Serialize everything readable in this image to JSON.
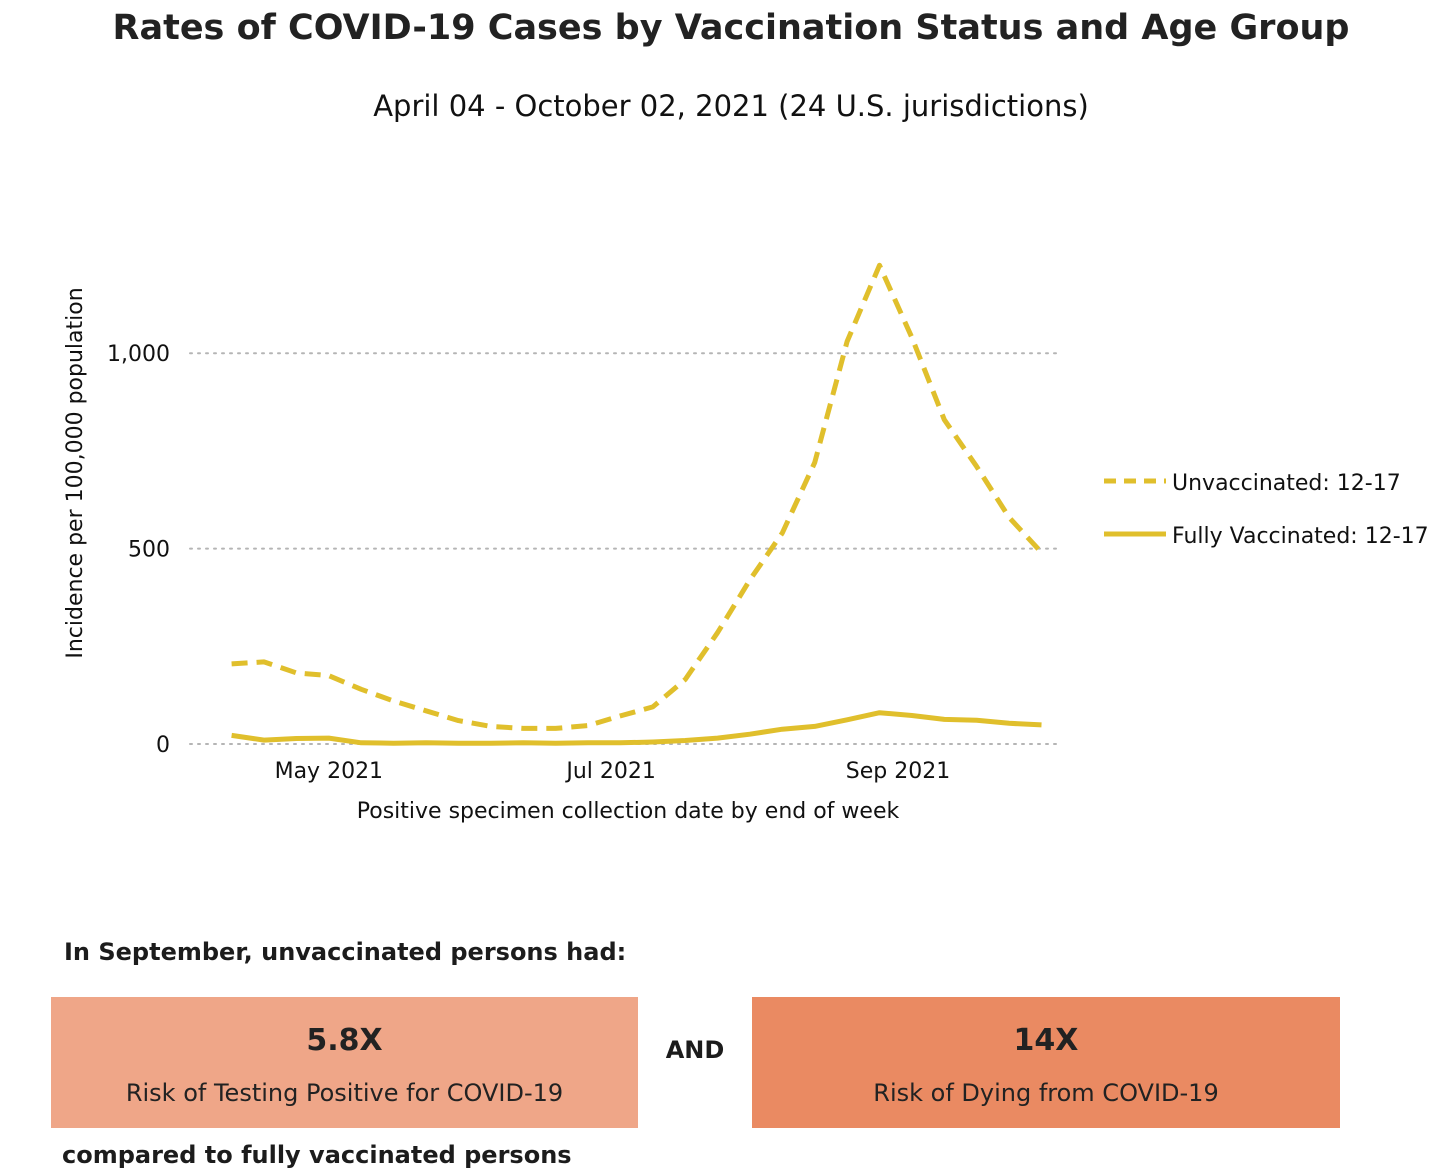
{
  "header": {
    "title": "Rates of COVID-19 Cases by Vaccination Status and Age Group",
    "subtitle": "April 04 - October 02, 2021 (24 U.S. jurisdictions)"
  },
  "chart_data": {
    "type": "line",
    "title": "Rates of COVID-19 Cases by Vaccination Status and Age Group",
    "subtitle": "April 04 - October 02, 2021 (24 U.S. jurisdictions)",
    "xlabel": "Positive specimen collection date by end of week",
    "ylabel": "Incidence per 100,000 population",
    "x_ticks": [
      "May 2021",
      "Jul 2021",
      "Sep 2021"
    ],
    "y_ticks": [
      "0",
      "500",
      "1,000"
    ],
    "y_tick_values": [
      0,
      500,
      1000
    ],
    "ylim": [
      0,
      1300
    ],
    "grid": "horizontal dotted",
    "legend_position": "right",
    "x": [
      "2021-04-10",
      "2021-04-17",
      "2021-04-24",
      "2021-05-01",
      "2021-05-08",
      "2021-05-15",
      "2021-05-22",
      "2021-05-29",
      "2021-06-05",
      "2021-06-12",
      "2021-06-19",
      "2021-06-26",
      "2021-07-03",
      "2021-07-10",
      "2021-07-17",
      "2021-07-24",
      "2021-07-31",
      "2021-08-07",
      "2021-08-14",
      "2021-08-21",
      "2021-08-28",
      "2021-09-04",
      "2021-09-11",
      "2021-09-18",
      "2021-09-25",
      "2021-10-02"
    ],
    "series": [
      {
        "name": "Unvaccinated: 12-17",
        "style": "dashed",
        "color": "#e0bf2c",
        "values": [
          205,
          210,
          182,
          175,
          140,
          110,
          85,
          60,
          45,
          40,
          40,
          47,
          72,
          95,
          165,
          285,
          420,
          540,
          720,
          1030,
          1225,
          1040,
          830,
          710,
          580,
          490
        ]
      },
      {
        "name": "Fully Vaccinated: 12-17",
        "style": "solid",
        "color": "#e0bf2c",
        "values": [
          22,
          10,
          14,
          15,
          3,
          2,
          3,
          2,
          2,
          3,
          2,
          3,
          3,
          5,
          9,
          15,
          25,
          38,
          45,
          62,
          80,
          73,
          63,
          61,
          53,
          49
        ]
      }
    ]
  },
  "summary": {
    "lead": "In September, unvaccinated persons had:",
    "left_value": "5.8X",
    "left_label": "Risk of Testing Positive for COVID-19",
    "connector": "AND",
    "right_value": "14X",
    "right_label": "Risk of Dying from COVID-19",
    "footer": "compared to fully vaccinated persons",
    "left_color": "#efa688",
    "right_color": "#ea8a62"
  }
}
